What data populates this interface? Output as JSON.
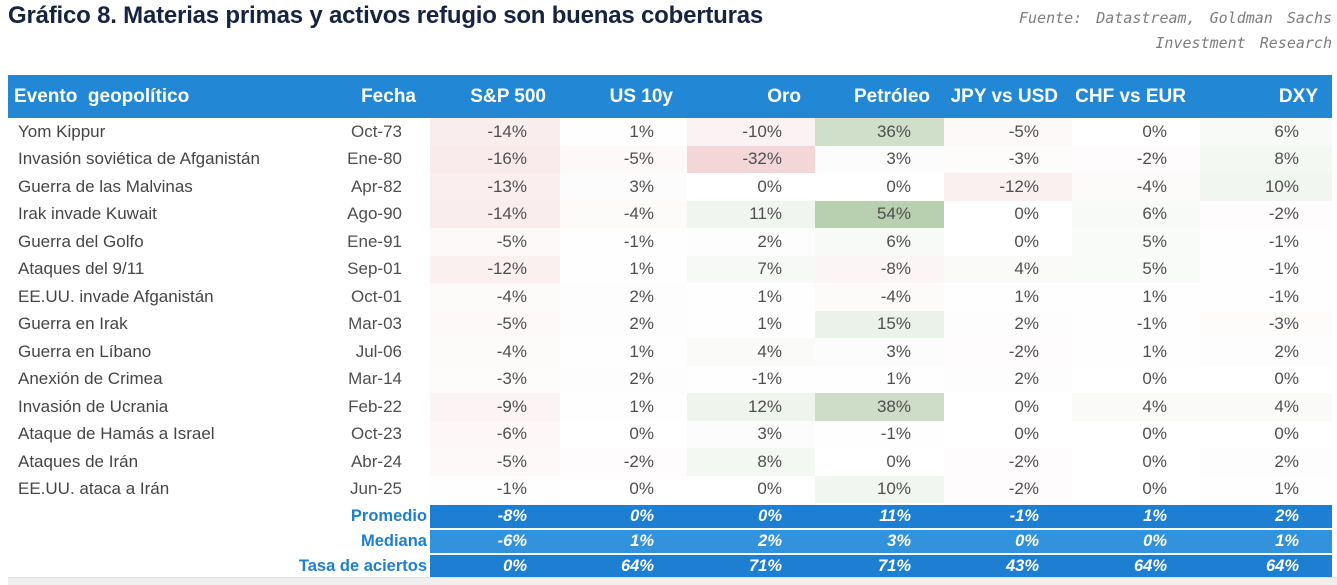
{
  "title": "Gráfico 8. Materias primas y activos refugio son buenas coberturas",
  "source": {
    "line1": "Fuente: Datastream, Goldman Sachs",
    "line2": "Investment Research"
  },
  "table": {
    "columns": [
      "Evento  geopolítico",
      "Fecha",
      "S&P 500",
      "US 10y",
      "Oro",
      "Petróleo",
      "JPY vs USD",
      "CHF vs EUR",
      "DXY"
    ],
    "rows": [
      {
        "event": "Yom Kippur",
        "date": "Oct-73",
        "values": [
          "-14%",
          "1%",
          "-10%",
          "36%",
          "-5%",
          "0%",
          "6%"
        ]
      },
      {
        "event": "Invasión soviética de Afganistán",
        "date": "Ene-80",
        "values": [
          "-16%",
          "-5%",
          "-32%",
          "3%",
          "-3%",
          "-2%",
          "8%"
        ]
      },
      {
        "event": "Guerra de las Malvinas",
        "date": "Apr-82",
        "values": [
          "-13%",
          "3%",
          "0%",
          "0%",
          "-12%",
          "-4%",
          "10%"
        ]
      },
      {
        "event": "Irak invade Kuwait",
        "date": "Ago-90",
        "values": [
          "-14%",
          "-4%",
          "11%",
          "54%",
          "0%",
          "6%",
          "-2%"
        ]
      },
      {
        "event": "Guerra del Golfo",
        "date": "Ene-91",
        "values": [
          "-5%",
          "-1%",
          "2%",
          "6%",
          "0%",
          "5%",
          "-1%"
        ]
      },
      {
        "event": "Ataques del 9/11",
        "date": "Sep-01",
        "values": [
          "-12%",
          "1%",
          "7%",
          "-8%",
          "4%",
          "5%",
          "-1%"
        ]
      },
      {
        "event": "EE.UU. invade Afganistán",
        "date": "Oct-01",
        "values": [
          "-4%",
          "2%",
          "1%",
          "-4%",
          "1%",
          "1%",
          "-1%"
        ]
      },
      {
        "event": "Guerra en Irak",
        "date": "Mar-03",
        "values": [
          "-5%",
          "2%",
          "1%",
          "15%",
          "2%",
          "-1%",
          "-3%"
        ]
      },
      {
        "event": "Guerra en Líbano",
        "date": "Jul-06",
        "values": [
          "-4%",
          "1%",
          "4%",
          "3%",
          "-2%",
          "1%",
          "2%"
        ]
      },
      {
        "event": "Anexión de Crimea",
        "date": "Mar-14",
        "values": [
          "-3%",
          "2%",
          "-1%",
          "1%",
          "2%",
          "0%",
          "0%"
        ]
      },
      {
        "event": "Invasión de Ucrania",
        "date": "Feb-22",
        "values": [
          "-9%",
          "1%",
          "12%",
          "38%",
          "0%",
          "4%",
          "4%"
        ]
      },
      {
        "event": "Ataque de Hamás a Israel",
        "date": "Oct-23",
        "values": [
          "-6%",
          "0%",
          "3%",
          "-1%",
          "0%",
          "0%",
          "0%"
        ]
      },
      {
        "event": "Ataques de Irán",
        "date": "Abr-24",
        "values": [
          "-5%",
          "-2%",
          "8%",
          "0%",
          "-2%",
          "0%",
          "2%"
        ]
      },
      {
        "event": "EE.UU. ataca a Irán",
        "date": "Jun-25",
        "values": [
          "-1%",
          "0%",
          "0%",
          "10%",
          "-2%",
          "0%",
          "1%"
        ]
      }
    ],
    "summary": [
      {
        "label": "Promedio",
        "shade": "dark",
        "values": [
          "-8%",
          "0%",
          "0%",
          "11%",
          "-1%",
          "1%",
          "2%"
        ]
      },
      {
        "label": "Mediana",
        "shade": "light",
        "values": [
          "-6%",
          "1%",
          "2%",
          "3%",
          "0%",
          "0%",
          "1%"
        ]
      },
      {
        "label": "Tasa de aciertos",
        "shade": "dark",
        "values": [
          "0%",
          "64%",
          "71%",
          "71%",
          "43%",
          "64%",
          "64%"
        ]
      }
    ]
  },
  "colors": {
    "header_bg": "#2288d5",
    "title_text": "#162441",
    "source_text": "#7d7d7d",
    "summary_dark_bg": "#1e7fd2",
    "summary_light_bg": "#3392dc",
    "summary_label_text": "#1e7fd2",
    "cell_negative": "#f2d6d8",
    "cell_positive": "#b8cfb0",
    "cell_neutral": "#ffffff",
    "scale_min": -32,
    "scale_max": 54,
    "bottom_bar": "#efefef"
  }
}
